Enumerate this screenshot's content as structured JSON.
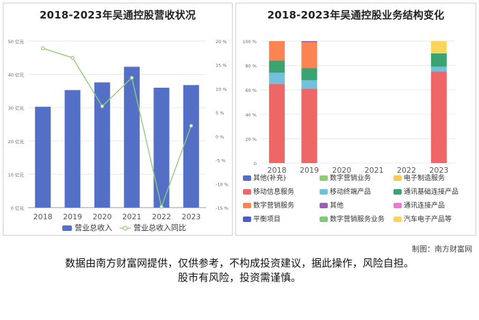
{
  "left_title": "2018-2023年吴通控股营收状况",
  "right_title": "2018-2023年吴通控股业务结构变化",
  "credit": "制图：南方财富网",
  "disclaimer_line1": "数据由南方财富网提供，仅供参考，不构成投资建议，据此操作，风险自担。",
  "disclaimer_line2": "股市有风险，投资需谨慎。",
  "colors": {
    "revenue_bar": "#5470c6",
    "yoy_line": "#91cc75",
    "grid": "#e8e8e8",
    "axis_text": "#666666"
  },
  "chart_data": [
    {
      "type": "bar",
      "title": "2018-2023年吴通控股营收状况",
      "categories": [
        "2018",
        "2019",
        "2020",
        "2021",
        "2022",
        "2023"
      ],
      "y_axis_left": {
        "ylim": [
          0,
          50
        ],
        "ticks": [
          "0 亿元",
          "10 亿元",
          "20 亿元",
          "30 亿元",
          "40 亿元",
          "50 亿元"
        ]
      },
      "y_axis_right": {
        "ylim": [
          -15,
          20
        ],
        "ticks": [
          "-15 %",
          "-10 %",
          "-5 %",
          "0 %",
          "5 %",
          "10 %",
          "15 %",
          "20 %"
        ]
      },
      "series": [
        {
          "name": "营业总收入",
          "type": "bar",
          "axis": "left",
          "values": [
            30.3,
            35.3,
            37.6,
            42.3,
            36.0,
            36.8
          ]
        },
        {
          "name": "营业总收入同比",
          "type": "line",
          "axis": "right",
          "values": [
            18.5,
            16.5,
            6.3,
            12.3,
            -14.8,
            2.2
          ]
        }
      ],
      "legend_position": "bottom",
      "grid": true
    },
    {
      "type": "bar",
      "stacked": true,
      "title": "2018-2023年吴通控股业务结构变化",
      "categories": [
        "2018",
        "2019",
        "2020",
        "2021",
        "2022",
        "2023"
      ],
      "y_axis": {
        "ylim": [
          0,
          100
        ],
        "ticks": [
          "0",
          "20 %",
          "40 %",
          "60 %",
          "80 %",
          "100 %"
        ]
      },
      "series": [
        {
          "name": "其他(补充)",
          "color": "#5470c6",
          "values": [
            0,
            0,
            0,
            0,
            0,
            0
          ]
        },
        {
          "name": "数字营销业务",
          "color": "#91cc75",
          "values": [
            0,
            0,
            0,
            0,
            0,
            0
          ]
        },
        {
          "name": "电子制造服务",
          "color": "#fac858",
          "values": [
            0,
            0,
            0,
            0,
            0,
            0
          ]
        },
        {
          "name": "移动信息服务",
          "color": "#ee6666",
          "values": [
            65,
            61,
            0,
            0,
            0,
            75
          ]
        },
        {
          "name": "移动终端产品",
          "color": "#73c0de",
          "values": [
            9,
            7,
            0,
            0,
            0,
            4
          ]
        },
        {
          "name": "通讯基础连接产品",
          "color": "#3ba272",
          "values": [
            10,
            10,
            0,
            0,
            0,
            11
          ]
        },
        {
          "name": "数字营销服务",
          "color": "#fc8452",
          "values": [
            16,
            21,
            0,
            0,
            0,
            0
          ]
        },
        {
          "name": "其他",
          "color": "#9a60b4",
          "values": [
            0,
            1,
            0,
            0,
            0,
            0
          ]
        },
        {
          "name": "通讯连接产品",
          "color": "#ea7ccc",
          "values": [
            0,
            0,
            0,
            0,
            0,
            0
          ]
        },
        {
          "name": "平衡项目",
          "color": "#4a5fc1",
          "values": [
            0,
            0,
            0,
            0,
            0,
            0
          ]
        },
        {
          "name": "数字营销服务业务",
          "color": "#7fc97f",
          "values": [
            0,
            0,
            0,
            0,
            0,
            0
          ]
        },
        {
          "name": "汽车电子产品等",
          "color": "#f9d65b",
          "values": [
            0,
            0,
            0,
            0,
            0,
            10
          ]
        }
      ],
      "legend_position": "bottom",
      "grid": true
    }
  ]
}
